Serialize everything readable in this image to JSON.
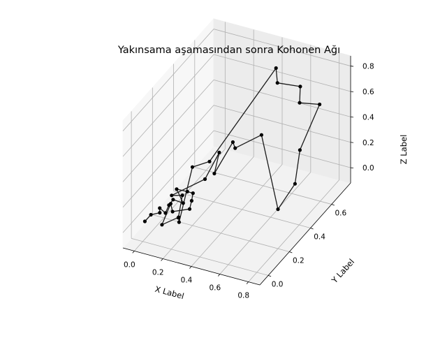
{
  "chart_data": {
    "type": "line",
    "title": "Yakınsama aşamasından sonra Kohonen Ağı",
    "xlabel": "X Label",
    "ylabel": "Y Label",
    "zlabel": "Z Label",
    "xlim": [
      -0.08,
      0.88
    ],
    "ylim": [
      -0.08,
      0.78
    ],
    "zlim": [
      -0.12,
      0.88
    ],
    "x_ticks": [
      "0.0",
      "0.2",
      "0.4",
      "0.6",
      "0.8"
    ],
    "y_ticks": [
      "0.0",
      "0.2",
      "0.4",
      "0.6"
    ],
    "z_ticks": [
      "0.0",
      "0.2",
      "0.4",
      "0.6",
      "0.8"
    ],
    "grid": true,
    "projection": "3d",
    "colors": {
      "line": "#1a1a1a",
      "marker": "#000000",
      "pane": "#f2f2f2",
      "grid": "#b0b0b0"
    },
    "x": [
      0.0,
      0.02,
      0.06,
      0.03,
      0.1,
      0.08,
      0.05,
      0.15,
      0.03,
      0.09,
      0.13,
      0.18,
      0.21,
      0.12,
      0.07,
      0.12,
      0.17,
      0.21,
      0.2,
      0.32,
      0.52,
      0.5,
      0.66,
      0.7,
      0.84,
      0.85,
      0.89,
      0.8,
      0.64,
      0.5,
      0.38,
      0.28,
      0.24,
      0.14,
      0.04,
      0.1,
      0.19
    ],
    "y": [
      0.02,
      0.05,
      0.08,
      0.12,
      0.08,
      0.14,
      0.22,
      0.18,
      0.28,
      0.3,
      0.3,
      0.22,
      0.16,
      0.12,
      0.17,
      0.02,
      0.11,
      0.06,
      0.2,
      0.2,
      0.56,
      0.6,
      0.6,
      0.54,
      0.54,
      0.34,
      0.24,
      0.2,
      0.26,
      0.2,
      0.34,
      0.3,
      0.4,
      0.4,
      0.22,
      0.24,
      0.08
    ],
    "z": [
      0.02,
      0.05,
      0.05,
      0.04,
      0.06,
      0.06,
      0.02,
      0.06,
      0.04,
      0.02,
      0.02,
      0.05,
      0.05,
      0.04,
      0.04,
      0.03,
      0.02,
      0.04,
      0.34,
      0.42,
      0.88,
      0.72,
      0.74,
      0.68,
      0.71,
      0.54,
      0.38,
      0.19,
      0.67,
      0.58,
      0.46,
      0.22,
      0.28,
      0.04,
      0.05,
      0.05,
      0.05
    ]
  }
}
